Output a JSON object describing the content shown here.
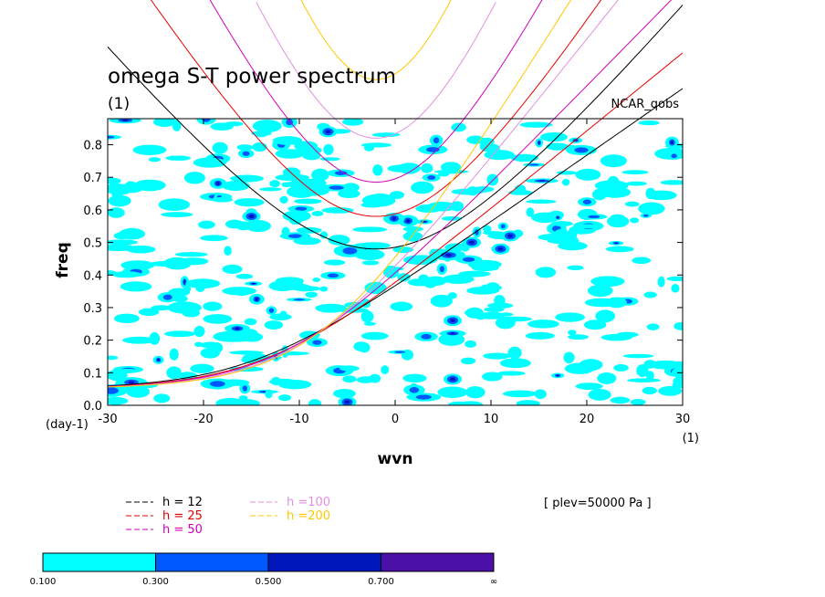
{
  "chart_data": {
    "type": "contour",
    "title": "omega S-T power spectrum",
    "subtitle": "(1)",
    "dataset_label": "NCAR_qobs",
    "xlabel": "wvn",
    "ylabel": "freq",
    "x_unit_label": "(1)",
    "y_unit_label": "(day-1)",
    "xlim": [
      -30,
      30
    ],
    "ylim": [
      0,
      0.88
    ],
    "xticks": [
      -30,
      -20,
      -10,
      0,
      10,
      20,
      30
    ],
    "xtick_labels": [
      "-30",
      "-20",
      "-10",
      "0",
      "10",
      "20",
      "30"
    ],
    "yticks": [
      0.0,
      0.1,
      0.2,
      0.3,
      0.4,
      0.5,
      0.6,
      0.7,
      0.8
    ],
    "ytick_labels": [
      "0.0",
      "0.1",
      "0.2",
      "0.3",
      "0.4",
      "0.5",
      "0.6",
      "0.7",
      "0.8"
    ],
    "level_annotation": "[ plev=50000 Pa ]",
    "contour_levels": [
      0.1,
      0.3,
      0.5,
      0.7
    ],
    "colorbar": {
      "labels": [
        "0.100",
        "0.300",
        "0.500",
        "0.700",
        "∞"
      ],
      "colors": [
        "#00ffff",
        "#0058ff",
        "#0018bb",
        "#4a10a8"
      ]
    },
    "dispersion_curves": [
      {
        "label": "h = 12",
        "color": "#000000",
        "h": 12
      },
      {
        "label": "h = 25",
        "color": "#e80000",
        "h": 25
      },
      {
        "label": "h = 50",
        "color": "#d000b8",
        "h": 50
      },
      {
        "label": "h =100",
        "color": "#e090e0",
        "h": 100
      },
      {
        "label": "h =200",
        "color": "#ffc800",
        "h": 200
      }
    ],
    "legend_position": "bottom-left"
  }
}
